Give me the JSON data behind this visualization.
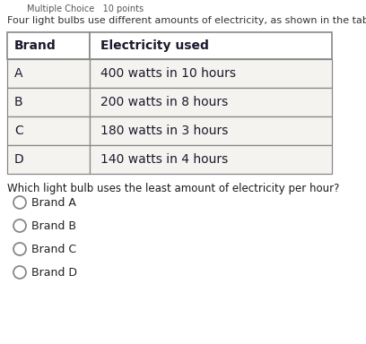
{
  "top_label": "Multiple Choice   10 points",
  "header_text": "Four light bulbs use different amounts of electricity, as shown in the table",
  "col1_header": "Brand",
  "col2_header": "Electricity used",
  "rows": [
    [
      "A",
      "400 watts in 10 hours"
    ],
    [
      "B",
      "200 watts in 8 hours"
    ],
    [
      "C",
      "180 watts in 3 hours"
    ],
    [
      "D",
      "140 watts in 4 hours"
    ]
  ],
  "question": "Which light bulb uses the least amount of electricity per hour?",
  "choices": [
    "Brand A",
    "Brand B",
    "Brand C",
    "Brand D"
  ],
  "bg_color": "#ffffff",
  "table_cell_bg": "#f5f3ef",
  "header_row_bg": "#ffffff",
  "border_color": "#888888",
  "text_color": "#1a1a2e",
  "header_text_color": "#333333",
  "top_label_color": "#555555",
  "question_color": "#1a1a1a",
  "choice_color": "#222222"
}
